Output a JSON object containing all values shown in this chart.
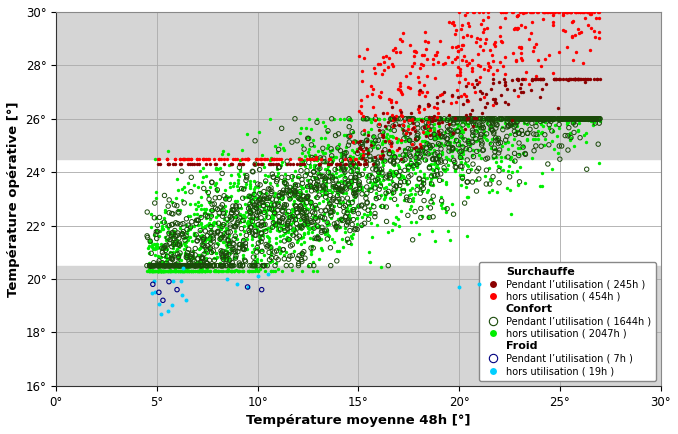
{
  "title": "",
  "xlabel": "Température moyenne 48h [°]",
  "ylabel": "Température opérative [°]",
  "xlim": [
    0,
    30
  ],
  "ylim": [
    16,
    30
  ],
  "xticks": [
    0,
    5,
    10,
    15,
    20,
    25,
    30
  ],
  "yticks": [
    16,
    18,
    20,
    22,
    24,
    26,
    28,
    30
  ],
  "xtick_labels": [
    "0°",
    "5°",
    "10°",
    "15°",
    "20°",
    "25°",
    "30°"
  ],
  "ytick_labels": [
    "16°",
    "18°",
    "20°",
    "22°",
    "24°",
    "26°",
    "28°",
    "30°"
  ],
  "comfort_band_lower": 20.5,
  "comfort_band_upper": 24.5,
  "plot_bg": "#ffffff",
  "gray_band_color": "#d0d0d0",
  "grid_color": "#c0c0c0",
  "surchauffe_pendant_color": "#8b0000",
  "surchauffe_hors_color": "#ff0000",
  "confort_pendant_color": "#1a4a0a",
  "confort_hors_color": "#00ee00",
  "froid_pendant_color": "#000080",
  "froid_hors_color": "#00cfff",
  "legend_labels": [
    "Pendant l’utilisation ( 245h )",
    "hors utilisation ( 454h )",
    "Pendant l’utilisation ( 1644h )",
    "hors utilisation ( 2047h )",
    "Pendant l’utilisation ( 7h )",
    "hors utilisation ( 19h )"
  ],
  "seed": 42
}
